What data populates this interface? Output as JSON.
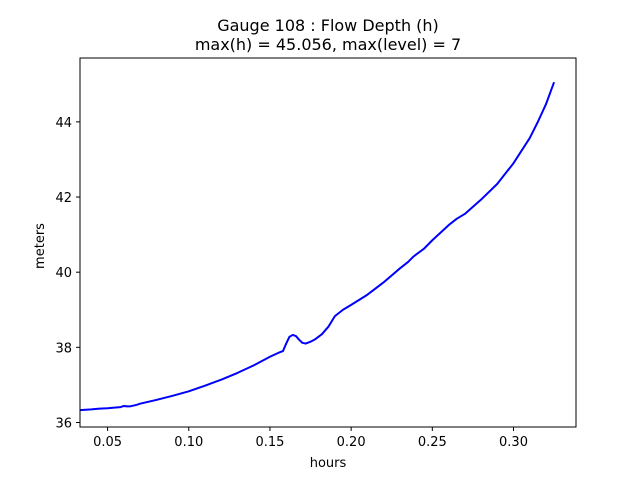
{
  "chart_data": {
    "type": "line",
    "title_line1": "Gauge 108 : Flow Depth (h)",
    "title_line2": "max(h) =  45.056,    max(level) = 7",
    "xlabel": "hours",
    "ylabel": "meters",
    "xlim": [
      0.033,
      0.3385
    ],
    "ylim": [
      35.88,
      45.7
    ],
    "xticks": [
      0.05,
      0.1,
      0.15,
      0.2,
      0.25,
      0.3
    ],
    "xtick_labels": [
      "0.05",
      "0.10",
      "0.15",
      "0.20",
      "0.25",
      "0.30"
    ],
    "yticks": [
      36,
      38,
      40,
      42,
      44
    ],
    "ytick_labels": [
      "36",
      "38",
      "40",
      "42",
      "44"
    ],
    "grid": false,
    "line_color": "#0000ff",
    "series": [
      {
        "x": [
          0.033,
          0.04,
          0.045,
          0.05,
          0.055,
          0.058,
          0.06,
          0.062,
          0.064,
          0.066,
          0.068,
          0.07,
          0.075,
          0.08,
          0.09,
          0.1,
          0.11,
          0.12,
          0.13,
          0.14,
          0.15,
          0.155,
          0.158,
          0.16,
          0.162,
          0.164,
          0.166,
          0.168,
          0.17,
          0.172,
          0.175,
          0.178,
          0.182,
          0.186,
          0.19,
          0.195,
          0.2,
          0.21,
          0.22,
          0.23,
          0.235,
          0.238,
          0.24,
          0.245,
          0.25,
          0.26,
          0.265,
          0.27,
          0.28,
          0.29,
          0.3,
          0.31,
          0.315,
          0.32,
          0.325
        ],
        "y": [
          36.33,
          36.35,
          36.37,
          36.38,
          36.4,
          36.41,
          36.44,
          36.43,
          36.43,
          36.45,
          36.47,
          36.5,
          36.55,
          36.6,
          36.71,
          36.83,
          36.98,
          37.14,
          37.32,
          37.52,
          37.75,
          37.85,
          37.9,
          38.1,
          38.28,
          38.33,
          38.3,
          38.2,
          38.12,
          38.1,
          38.15,
          38.22,
          38.35,
          38.55,
          38.83,
          39.0,
          39.13,
          39.4,
          39.73,
          40.1,
          40.27,
          40.4,
          40.47,
          40.63,
          40.85,
          41.25,
          41.42,
          41.55,
          41.93,
          42.35,
          42.9,
          43.57,
          44.0,
          44.47,
          45.056
        ]
      }
    ]
  }
}
